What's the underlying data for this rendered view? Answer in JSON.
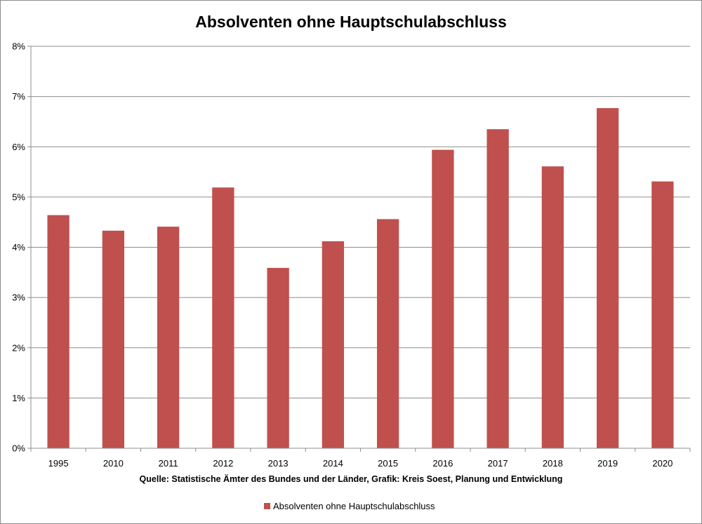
{
  "chart_data": {
    "type": "bar",
    "title": "Absolventen ohne Hauptschulabschluss",
    "categories": [
      "1995",
      "2010",
      "2011",
      "2012",
      "2013",
      "2014",
      "2015",
      "2016",
      "2017",
      "2018",
      "2019",
      "2020"
    ],
    "series": [
      {
        "name": "Absolventen ohne Hauptschulabschluss",
        "values": [
          4.64,
          4.33,
          4.41,
          5.19,
          3.59,
          4.12,
          4.56,
          5.94,
          6.35,
          5.61,
          6.77,
          5.31
        ]
      }
    ],
    "ylim": [
      0,
      8
    ],
    "yticks": [
      "0%",
      "1%",
      "2%",
      "3%",
      "4%",
      "5%",
      "6%",
      "7%",
      "8%"
    ],
    "grid": true,
    "legend_position": "bottom",
    "source_note": "Quelle: Statistische Ämter des Bundes und der Länder, Grafik: Kreis Soest, Planung und Entwicklung",
    "colors": {
      "bar": "#c0504d",
      "grid": "#8c8c8c",
      "axis": "#8c8c8c"
    }
  }
}
